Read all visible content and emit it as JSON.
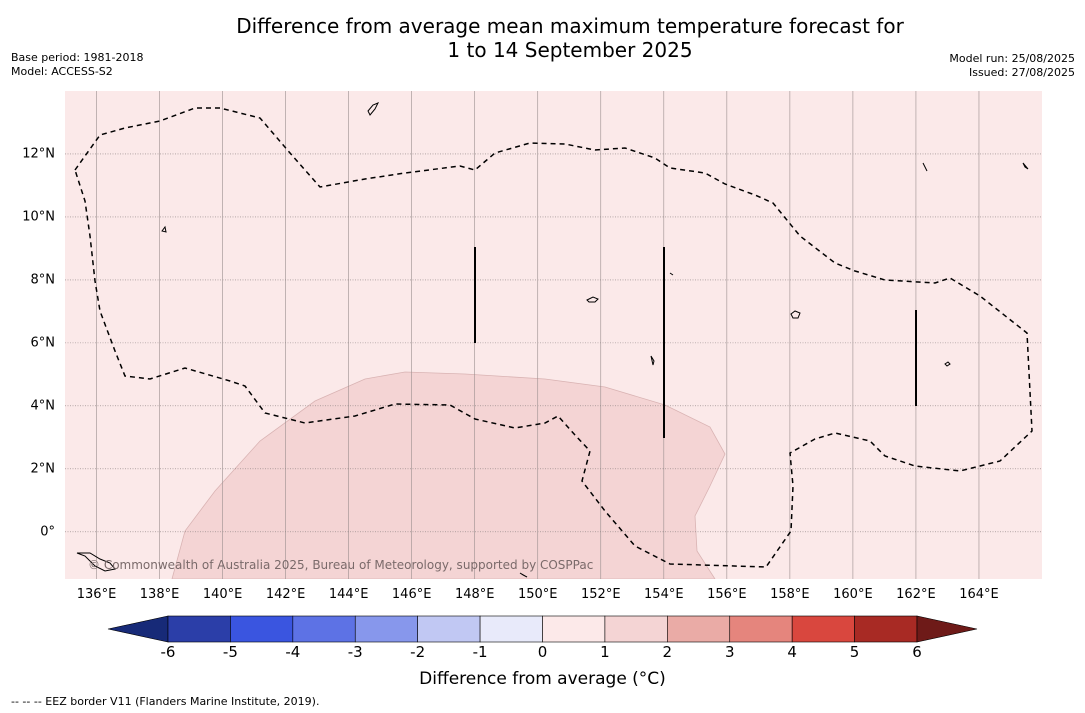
{
  "title_line1": "Difference from average mean maximum temperature forecast for",
  "title_line2": "1 to 14 September 2025",
  "base_period": "Base period: 1981-2018",
  "model": "Model: ACCESS-S2",
  "model_run": "Model run: 25/08/2025",
  "issued": "Issued: 27/08/2025",
  "x_ticks": [
    "136°E",
    "138°E",
    "140°E",
    "142°E",
    "144°E",
    "146°E",
    "148°E",
    "150°E",
    "152°E",
    "154°E",
    "156°E",
    "158°E",
    "160°E",
    "162°E",
    "164°E"
  ],
  "y_ticks": [
    "12°N",
    "10°N",
    "8°N",
    "6°N",
    "4°N",
    "2°N",
    "0°"
  ],
  "colorbar": {
    "label": "Difference from average ($^\\circ$C)",
    "label_display": "Difference from average (°C)",
    "ticks": [
      "-6",
      "-5",
      "-4",
      "-3",
      "-2",
      "-1",
      "0",
      "1",
      "2",
      "3",
      "4",
      "5",
      "6"
    ],
    "colors": {
      "below": "#172a78",
      "-6_-5": "#2b3ea8",
      "-5_-4": "#3a55e0",
      "-4_-3": "#5d72e5",
      "-3_-2": "#8797ec",
      "-2_-1": "#c1c8f3",
      "-1_0": "#e8eafa",
      "0_1": "#fce9e9",
      "1_2": "#f4d4d4",
      "2_3": "#eaaba6",
      "3_4": "#e5857d",
      "4_5": "#d9473e",
      "5_6": "#a82a24",
      "above": "#6e1a18"
    }
  },
  "map": {
    "lon_range": [
      135,
      166
    ],
    "lat_range": [
      -1.5,
      14
    ],
    "background_class": "0 to 1",
    "warm_region_class": "1 to 2",
    "boundary_style": "EEZ dashed line"
  },
  "copyright": "© Commonwealth of Australia 2025, Bureau of Meteorology, supported by COSPPac",
  "footnote": "--  --  -- EEZ border V11 (Flanders Marine Institute, 2019)."
}
